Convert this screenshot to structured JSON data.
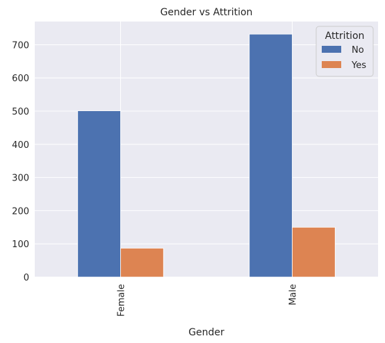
{
  "chart_data": {
    "type": "bar",
    "title": "Gender vs Attrition",
    "xlabel": "Gender",
    "ylabel": "",
    "categories": [
      "Female",
      "Male"
    ],
    "series": [
      {
        "name": "No",
        "values": [
          501,
          732
        ],
        "color": "#4c72b0"
      },
      {
        "name": "Yes",
        "values": [
          87,
          150
        ],
        "color": "#dd8452"
      }
    ],
    "ylim": [
      0,
      770
    ],
    "yticks": [
      0,
      100,
      200,
      300,
      400,
      500,
      600,
      700
    ],
    "grid": true,
    "legend": {
      "title": "Attrition",
      "placement": "top-right"
    },
    "colors": {
      "background": "#eaeaf2",
      "grid": "#ffffff"
    }
  }
}
